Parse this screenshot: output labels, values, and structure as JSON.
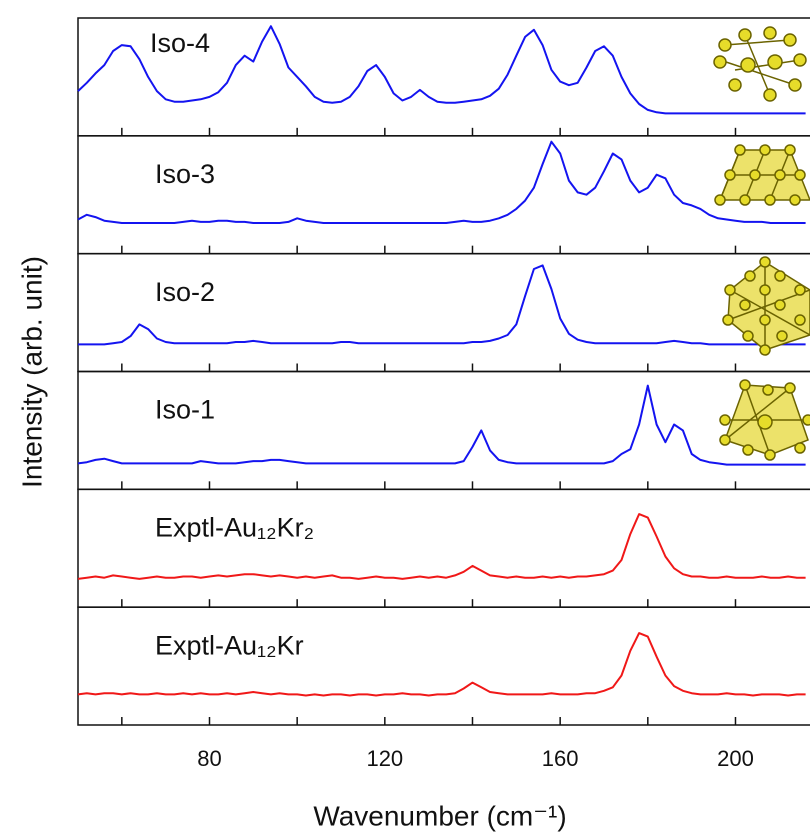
{
  "chart_data": {
    "type": "line",
    "layout": "stacked",
    "xlabel": "Wavenumber (cm⁻¹)",
    "ylabel": "Intensity (arb. unit)",
    "xlim": [
      50,
      217
    ],
    "xticks": [
      80,
      120,
      160,
      200
    ],
    "minor_xticks": [
      60,
      100,
      140,
      180
    ],
    "ylim": [
      0,
      1
    ],
    "x": [
      50,
      52,
      54,
      56,
      58,
      60,
      62,
      64,
      66,
      68,
      70,
      72,
      74,
      76,
      78,
      80,
      82,
      84,
      86,
      88,
      90,
      92,
      94,
      96,
      98,
      100,
      102,
      104,
      106,
      108,
      110,
      112,
      114,
      116,
      118,
      120,
      122,
      124,
      126,
      128,
      130,
      132,
      134,
      136,
      138,
      140,
      142,
      144,
      146,
      148,
      150,
      152,
      154,
      156,
      158,
      160,
      162,
      164,
      166,
      168,
      170,
      172,
      174,
      176,
      178,
      180,
      182,
      184,
      186,
      188,
      190,
      192,
      194,
      196,
      198,
      200,
      202,
      204,
      206,
      208,
      210,
      212,
      214,
      216
    ],
    "series": [
      {
        "name": "Iso-4",
        "color": "#1414f0",
        "values": [
          0.38,
          0.45,
          0.53,
          0.6,
          0.72,
          0.77,
          0.76,
          0.65,
          0.5,
          0.38,
          0.31,
          0.29,
          0.29,
          0.3,
          0.31,
          0.33,
          0.37,
          0.45,
          0.6,
          0.68,
          0.63,
          0.8,
          0.93,
          0.78,
          0.58,
          0.5,
          0.42,
          0.33,
          0.29,
          0.28,
          0.29,
          0.33,
          0.42,
          0.55,
          0.6,
          0.5,
          0.36,
          0.3,
          0.33,
          0.39,
          0.33,
          0.29,
          0.28,
          0.28,
          0.29,
          0.3,
          0.31,
          0.34,
          0.4,
          0.52,
          0.68,
          0.84,
          0.9,
          0.77,
          0.56,
          0.46,
          0.43,
          0.45,
          0.58,
          0.72,
          0.76,
          0.68,
          0.5,
          0.36,
          0.27,
          0.22,
          0.2,
          0.19,
          0.19,
          0.19,
          0.19,
          0.19,
          0.19,
          0.19,
          0.19,
          0.19,
          0.19,
          0.19,
          0.19,
          0.19,
          0.19,
          0.19,
          0.19,
          0.19
        ]
      },
      {
        "name": "Iso-3",
        "color": "#1414f0",
        "values": [
          0.29,
          0.33,
          0.31,
          0.28,
          0.27,
          0.26,
          0.26,
          0.26,
          0.26,
          0.26,
          0.26,
          0.26,
          0.27,
          0.28,
          0.27,
          0.27,
          0.28,
          0.28,
          0.27,
          0.27,
          0.26,
          0.26,
          0.26,
          0.26,
          0.27,
          0.3,
          0.28,
          0.27,
          0.26,
          0.26,
          0.26,
          0.26,
          0.26,
          0.26,
          0.26,
          0.26,
          0.26,
          0.26,
          0.26,
          0.26,
          0.26,
          0.26,
          0.26,
          0.27,
          0.28,
          0.27,
          0.27,
          0.28,
          0.3,
          0.33,
          0.38,
          0.45,
          0.56,
          0.76,
          0.95,
          0.85,
          0.62,
          0.52,
          0.5,
          0.56,
          0.7,
          0.85,
          0.8,
          0.62,
          0.52,
          0.56,
          0.67,
          0.64,
          0.5,
          0.43,
          0.41,
          0.38,
          0.33,
          0.3,
          0.29,
          0.28,
          0.27,
          0.27,
          0.27,
          0.26,
          0.26,
          0.26,
          0.26,
          0.26
        ]
      },
      {
        "name": "Iso-2",
        "color": "#1414f0",
        "values": [
          0.23,
          0.23,
          0.23,
          0.23,
          0.24,
          0.25,
          0.3,
          0.4,
          0.36,
          0.28,
          0.25,
          0.24,
          0.24,
          0.24,
          0.24,
          0.24,
          0.24,
          0.24,
          0.25,
          0.25,
          0.26,
          0.25,
          0.24,
          0.24,
          0.24,
          0.24,
          0.24,
          0.24,
          0.24,
          0.24,
          0.25,
          0.25,
          0.24,
          0.24,
          0.24,
          0.24,
          0.24,
          0.24,
          0.24,
          0.24,
          0.24,
          0.24,
          0.24,
          0.24,
          0.24,
          0.25,
          0.25,
          0.26,
          0.28,
          0.31,
          0.4,
          0.64,
          0.87,
          0.9,
          0.7,
          0.45,
          0.32,
          0.27,
          0.25,
          0.24,
          0.24,
          0.24,
          0.24,
          0.24,
          0.24,
          0.24,
          0.24,
          0.25,
          0.26,
          0.25,
          0.24,
          0.24,
          0.23,
          0.23,
          0.23,
          0.23,
          0.23,
          0.23,
          0.23,
          0.23,
          0.23,
          0.23,
          0.23,
          0.23
        ]
      },
      {
        "name": "Iso-1",
        "color": "#1414f0",
        "values": [
          0.22,
          0.23,
          0.25,
          0.26,
          0.24,
          0.22,
          0.22,
          0.22,
          0.22,
          0.22,
          0.22,
          0.22,
          0.22,
          0.22,
          0.24,
          0.23,
          0.22,
          0.22,
          0.22,
          0.23,
          0.24,
          0.24,
          0.25,
          0.25,
          0.24,
          0.23,
          0.22,
          0.22,
          0.22,
          0.22,
          0.22,
          0.22,
          0.22,
          0.22,
          0.22,
          0.22,
          0.22,
          0.22,
          0.22,
          0.22,
          0.22,
          0.22,
          0.22,
          0.22,
          0.24,
          0.36,
          0.5,
          0.33,
          0.25,
          0.23,
          0.22,
          0.22,
          0.22,
          0.22,
          0.22,
          0.22,
          0.22,
          0.22,
          0.22,
          0.22,
          0.22,
          0.24,
          0.3,
          0.34,
          0.55,
          0.88,
          0.55,
          0.4,
          0.55,
          0.5,
          0.3,
          0.25,
          0.23,
          0.22,
          0.21,
          0.21,
          0.21,
          0.21,
          0.21,
          0.21,
          0.21,
          0.21,
          0.21,
          0.21
        ]
      },
      {
        "name": "Exptl-Au₁₂Kr₂",
        "color": "#f01818",
        "values": [
          0.24,
          0.25,
          0.26,
          0.25,
          0.27,
          0.26,
          0.25,
          0.24,
          0.25,
          0.26,
          0.25,
          0.25,
          0.26,
          0.26,
          0.25,
          0.26,
          0.27,
          0.26,
          0.27,
          0.28,
          0.28,
          0.27,
          0.26,
          0.27,
          0.26,
          0.25,
          0.26,
          0.25,
          0.26,
          0.27,
          0.25,
          0.25,
          0.24,
          0.25,
          0.26,
          0.25,
          0.25,
          0.24,
          0.25,
          0.26,
          0.25,
          0.26,
          0.25,
          0.27,
          0.3,
          0.35,
          0.31,
          0.27,
          0.26,
          0.25,
          0.26,
          0.25,
          0.25,
          0.26,
          0.25,
          0.26,
          0.25,
          0.26,
          0.26,
          0.27,
          0.28,
          0.31,
          0.4,
          0.62,
          0.79,
          0.76,
          0.6,
          0.43,
          0.33,
          0.28,
          0.26,
          0.26,
          0.25,
          0.25,
          0.26,
          0.25,
          0.25,
          0.25,
          0.26,
          0.25,
          0.25,
          0.26,
          0.25,
          0.25
        ]
      },
      {
        "name": "Exptl-Au₁₂Kr",
        "color": "#f01818",
        "values": [
          0.26,
          0.27,
          0.26,
          0.27,
          0.27,
          0.26,
          0.27,
          0.26,
          0.26,
          0.27,
          0.26,
          0.26,
          0.27,
          0.26,
          0.27,
          0.26,
          0.26,
          0.27,
          0.26,
          0.27,
          0.28,
          0.27,
          0.26,
          0.27,
          0.26,
          0.26,
          0.25,
          0.26,
          0.25,
          0.26,
          0.26,
          0.25,
          0.26,
          0.26,
          0.25,
          0.26,
          0.26,
          0.27,
          0.26,
          0.26,
          0.25,
          0.26,
          0.26,
          0.27,
          0.31,
          0.36,
          0.32,
          0.28,
          0.27,
          0.26,
          0.26,
          0.26,
          0.26,
          0.26,
          0.27,
          0.26,
          0.26,
          0.26,
          0.27,
          0.27,
          0.29,
          0.32,
          0.42,
          0.63,
          0.78,
          0.75,
          0.58,
          0.42,
          0.33,
          0.29,
          0.27,
          0.26,
          0.26,
          0.26,
          0.27,
          0.26,
          0.26,
          0.25,
          0.26,
          0.26,
          0.26,
          0.25,
          0.26,
          0.26
        ]
      }
    ]
  }
}
